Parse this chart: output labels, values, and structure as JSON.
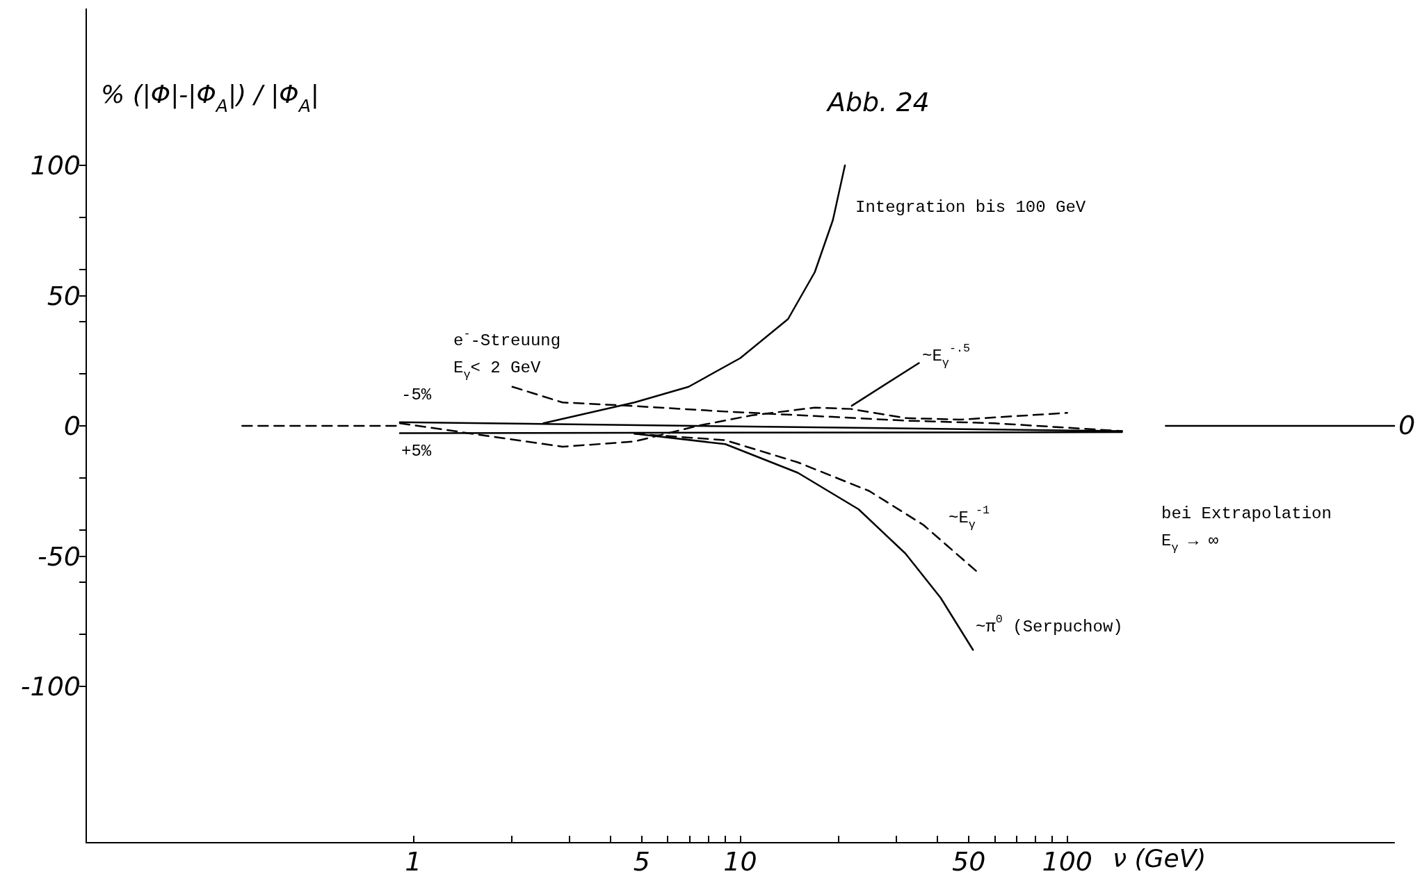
{
  "chart_data": {
    "type": "line",
    "title": "Abb. 24",
    "xlabel": "ν (GeV)",
    "ylabel": "% (|Φ|-|Φ$_{A}$|) / |Φ$_{A}$|",
    "log": "x",
    "xlim": [
      0.1,
      1000
    ],
    "xticks": [
      1,
      {
        "value": 2,
        "label": null
      },
      {
        "value": 3,
        "label": null
      },
      {
        "value": 4,
        "label": null
      },
      5,
      {
        "value": 6,
        "label": null
      },
      {
        "value": 7,
        "label": null
      },
      {
        "value": 8,
        "label": null
      },
      {
        "value": 9,
        "label": null
      },
      10,
      {
        "value": 20,
        "label": null
      },
      {
        "value": 30,
        "label": null
      },
      {
        "value": 40,
        "label": null
      },
      50,
      {
        "value": 60,
        "label": null
      },
      {
        "value": 70,
        "label": null
      },
      {
        "value": 80,
        "label": null
      },
      {
        "value": 90,
        "label": null
      },
      100
    ],
    "ylim": [
      -160,
      160
    ],
    "yticks": [
      -100,
      {
        "value": -80,
        "label": null
      },
      {
        "value": -60,
        "label": null
      },
      -50,
      {
        "value": -40,
        "label": null
      },
      {
        "value": -20,
        "label": null
      },
      0,
      {
        "value": 20,
        "label": null
      },
      {
        "value": 40,
        "label": null
      },
      50,
      {
        "value": 60,
        "label": null
      },
      {
        "value": 80,
        "label": null
      },
      100
    ],
    "grid": false,
    "marker": "none",
    "series": [
      {
        "color": "#000000",
        "line_style": "solid",
        "x": [
          2.5,
          4.75,
          6.95,
          10,
          14,
          16.9,
          19.2,
          20.9
        ],
        "values": [
          1,
          9,
          15,
          26,
          41,
          59,
          79,
          100
        ]
      },
      {
        "color": "#000000",
        "line_style": "solid",
        "x": [
          4.75,
          9,
          15,
          23,
          32,
          41,
          51.5
        ],
        "values": [
          -3,
          -7,
          -18,
          -32,
          -49,
          -66,
          -86
        ]
      },
      {
        "color": "#000000",
        "line_style": "dashed",
        "x": [
          4.75,
          9,
          15,
          24.8,
          36.3,
          53
        ],
        "values": [
          -3,
          -5.5,
          -14,
          -25,
          -38,
          -56
        ]
      },
      {
        "color": "#000000",
        "line_style": "dashed",
        "x": [
          0.91,
          2.86,
          4.75,
          7.4,
          10.8,
          16.9,
          21.8,
          32,
          47,
          100
        ],
        "values": [
          1,
          -8,
          -6,
          0,
          4,
          7,
          6.5,
          3,
          2.4,
          5
        ]
      },
      {
        "color": "#000000",
        "line_style": "dashed",
        "x": [
          2.01,
          2.86,
          4.75,
          9,
          16.9,
          32,
          60,
          147
        ],
        "values": [
          15,
          9,
          7.6,
          5.5,
          3.8,
          2,
          1,
          -2
        ]
      },
      {
        "color": "#000000",
        "line_style": "solid",
        "x": [
          0.91,
          147
        ],
        "values": [
          1.4,
          -2
        ]
      },
      {
        "color": "#000000",
        "line_style": "solid",
        "x": [
          0.91,
          147
        ],
        "values": [
          -2.8,
          -2.4
        ]
      },
      {
        "color": "#000000",
        "line_style": "dashed",
        "x": [
          0.3,
          0.9
        ],
        "values": [
          0,
          0
        ]
      },
      {
        "color": "#000000",
        "line_style": "solid",
        "x": [
          200,
          1000
        ],
        "values": [
          0,
          0
        ]
      }
    ],
    "annotations": [
      "Integration bis 100 GeV",
      "e$^{-}$-Streuung\nE$_{γ}$< 2 GeV",
      {
        "text": "~E$_{γ}$$^{-.5}$",
        "x": 21.8,
        "y": 6.5
      },
      "~E$_{γ}$$^{-1}$",
      "~π$^{0}$ (Serpuchow)",
      "bei Extrapolation\nE$_{γ}$ → ∞",
      "-5%",
      "+5%",
      "0"
    ]
  }
}
